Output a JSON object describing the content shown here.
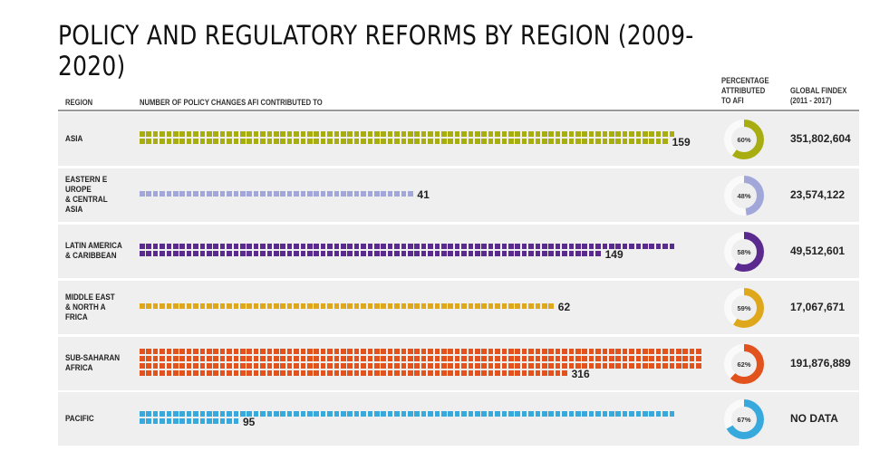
{
  "title": "POLICY AND REGULATORY REFORMS BY REGION (2009-2020)",
  "headers": {
    "region": "REGION",
    "policy_changes": "NUMBER OF POLICY CHANGES AFI CONTRIBUTED TO",
    "percentage": "PERCENTAGE\nATTRIBUTED\nTO AFI",
    "findex": "GLOBAL FINDEX\n(2011 - 2017)"
  },
  "chart_data": {
    "type": "table",
    "columns": [
      "REGION",
      "NUMBER OF POLICY CHANGES AFI CONTRIBUTED TO",
      "PERCENTAGE ATTRIBUTED TO AFI",
      "GLOBAL FINDEX (2011 - 2017)"
    ],
    "rows": [
      {
        "region": "ASIA",
        "policy_changes": 159,
        "policy_label": "159",
        "percentage": 60,
        "pct_label": "60%",
        "findex": "351,802,604",
        "color": "#a8ae12"
      },
      {
        "region": "EASTERN E\nUROPE\n& CENTRAL\nASIA",
        "policy_changes": 41,
        "policy_label": "41",
        "percentage": 48,
        "pct_label": "48%",
        "findex": "23,574,122",
        "color": "#a2a7d9"
      },
      {
        "region": "LATIN AMERICA\n& CARIBBEAN",
        "policy_changes": 149,
        "policy_label": "149",
        "percentage": 58,
        "pct_label": "58%",
        "findex": "49,512,601",
        "color": "#5b2a8e"
      },
      {
        "region": "MIDDLE EAST\n& NORTH A\nFRICA",
        "policy_changes": 62,
        "policy_label": "62",
        "percentage": 59,
        "pct_label": "59%",
        "findex": "17,067,671",
        "color": "#dfa71b"
      },
      {
        "region": "SUB-SAHARAN\nAFRICA",
        "policy_changes": 316,
        "policy_label": "316",
        "percentage": 62,
        "pct_label": "62%",
        "findex": "191,876,889",
        "color": "#e2521d"
      },
      {
        "region": "PACIFIC",
        "policy_changes": 95,
        "policy_label": "95",
        "percentage": 67,
        "pct_label": "67%",
        "findex": "NO DATA",
        "color": "#38a9dd"
      }
    ]
  }
}
